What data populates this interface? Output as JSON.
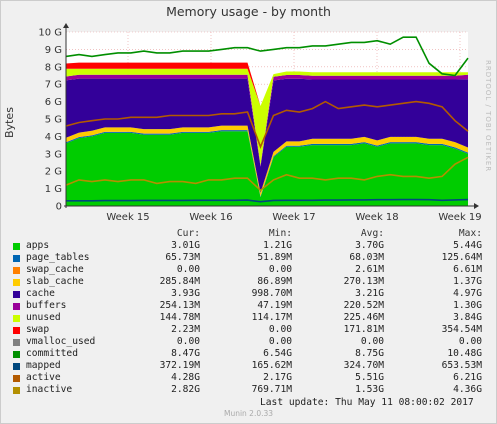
{
  "title": "Memory usage - by month",
  "ylabel": "Bytes",
  "side_text": "RRDTOOL / TOBI OETIKER",
  "columns": [
    "Cur:",
    "Min:",
    "Avg:",
    "Max:"
  ],
  "last_update": "Last update:  Thu May 11 08:00:02 2017",
  "version": "Munin 2.0.33",
  "chart_data": {
    "type": "area",
    "title": "Memory usage - by month",
    "ylabel": "Bytes",
    "xlabel": "",
    "ylim": [
      0,
      10
    ],
    "y_ticks": [
      "0",
      "1 G",
      "2 G",
      "3 G",
      "4 G",
      "5 G",
      "6 G",
      "7 G",
      "8 G",
      "9 G",
      "10 G"
    ],
    "x_ticks": [
      "Week 15",
      "Week 16",
      "Week 17",
      "Week 18",
      "Week 19"
    ],
    "grid": true,
    "stacked_series": [
      {
        "name": "apps",
        "color": "#00cc00",
        "values": [
          3.6,
          3.9,
          4.0,
          4.2,
          4.2,
          4.2,
          4.1,
          4.1,
          4.1,
          4.2,
          4.2,
          4.2,
          4.3,
          4.3,
          4.3,
          0.5,
          2.8,
          3.4,
          3.4,
          3.5,
          3.5,
          3.5,
          3.5,
          3.6,
          3.4,
          3.6,
          3.6,
          3.6,
          3.5,
          3.5,
          3.3,
          3.0
        ]
      },
      {
        "name": "page_tables",
        "color": "#0066b3",
        "values": [
          0.06,
          0.06,
          0.06,
          0.06,
          0.06,
          0.06,
          0.06,
          0.06,
          0.06,
          0.06,
          0.06,
          0.06,
          0.06,
          0.06,
          0.06,
          0.05,
          0.06,
          0.06,
          0.06,
          0.07,
          0.07,
          0.07,
          0.07,
          0.07,
          0.07,
          0.07,
          0.07,
          0.07,
          0.07,
          0.07,
          0.07,
          0.07
        ]
      },
      {
        "name": "swap_cache",
        "color": "#ff8000",
        "values": [
          0.01,
          0.01,
          0.01,
          0.01,
          0.01,
          0.01,
          0.01,
          0.01,
          0.01,
          0.01,
          0.01,
          0.01,
          0.01,
          0.01,
          0.01,
          0.0,
          0.0,
          0.0,
          0.0,
          0.0,
          0.0,
          0.0,
          0.0,
          0.0,
          0.0,
          0.0,
          0.0,
          0.0,
          0.0,
          0.0,
          0.0,
          0.0
        ]
      },
      {
        "name": "slab_cache",
        "color": "#ffcc00",
        "values": [
          0.25,
          0.25,
          0.25,
          0.25,
          0.25,
          0.25,
          0.25,
          0.25,
          0.25,
          0.25,
          0.25,
          0.25,
          0.25,
          0.25,
          0.25,
          0.2,
          0.25,
          0.25,
          0.25,
          0.3,
          0.3,
          0.3,
          0.3,
          0.3,
          0.3,
          0.3,
          0.3,
          0.3,
          0.3,
          0.3,
          0.3,
          0.29
        ]
      },
      {
        "name": "cache",
        "color": "#330099",
        "values": [
          3.3,
          3.1,
          3.0,
          2.8,
          2.8,
          2.8,
          2.9,
          2.9,
          2.9,
          2.8,
          2.8,
          2.8,
          2.7,
          2.7,
          2.7,
          1.5,
          4.1,
          3.6,
          3.6,
          3.4,
          3.4,
          3.4,
          3.4,
          3.3,
          3.5,
          3.3,
          3.3,
          3.3,
          3.4,
          3.4,
          3.6,
          3.93
        ]
      },
      {
        "name": "buffers",
        "color": "#990099",
        "values": [
          0.22,
          0.22,
          0.22,
          0.22,
          0.22,
          0.22,
          0.22,
          0.22,
          0.22,
          0.22,
          0.22,
          0.22,
          0.22,
          0.22,
          0.22,
          0.1,
          0.22,
          0.22,
          0.22,
          0.22,
          0.22,
          0.22,
          0.22,
          0.22,
          0.22,
          0.22,
          0.22,
          0.22,
          0.22,
          0.22,
          0.22,
          0.25
        ]
      },
      {
        "name": "unused",
        "color": "#ccff00",
        "values": [
          0.45,
          0.35,
          0.35,
          0.35,
          0.35,
          0.35,
          0.35,
          0.35,
          0.35,
          0.35,
          0.35,
          0.35,
          0.35,
          0.35,
          0.35,
          3.4,
          0.15,
          0.2,
          0.2,
          0.2,
          0.2,
          0.2,
          0.2,
          0.2,
          0.2,
          0.2,
          0.2,
          0.2,
          0.2,
          0.2,
          0.2,
          0.15
        ]
      },
      {
        "name": "swap",
        "color": "#ff0000",
        "values": [
          0.3,
          0.35,
          0.35,
          0.35,
          0.35,
          0.35,
          0.35,
          0.35,
          0.35,
          0.35,
          0.35,
          0.35,
          0.35,
          0.35,
          0.35,
          0.0,
          0.0,
          0.0,
          0.0,
          0.0,
          0.0,
          0.0,
          0.0,
          0.0,
          0.0,
          0.0,
          0.0,
          0.0,
          0.0,
          0.0,
          0.0,
          0.0
        ]
      }
    ],
    "line_series": [
      {
        "name": "committed",
        "color": "#008f00",
        "values": [
          8.6,
          8.7,
          8.6,
          8.7,
          8.8,
          8.8,
          8.9,
          8.8,
          8.8,
          8.9,
          8.9,
          8.9,
          9.0,
          9.1,
          9.1,
          8.9,
          9.0,
          9.1,
          9.1,
          9.2,
          9.2,
          9.3,
          9.4,
          9.4,
          9.5,
          9.3,
          9.7,
          9.7,
          8.2,
          7.6,
          7.5,
          8.5
        ]
      },
      {
        "name": "mapped",
        "color": "#00487d",
        "values": [
          0.3,
          0.3,
          0.3,
          0.31,
          0.31,
          0.31,
          0.32,
          0.32,
          0.32,
          0.32,
          0.33,
          0.33,
          0.33,
          0.33,
          0.34,
          0.25,
          0.32,
          0.33,
          0.33,
          0.33,
          0.34,
          0.34,
          0.35,
          0.35,
          0.36,
          0.36,
          0.37,
          0.37,
          0.36,
          0.33,
          0.35,
          0.37
        ]
      },
      {
        "name": "active",
        "color": "#b35a00",
        "values": [
          4.6,
          4.8,
          4.9,
          5.0,
          5.0,
          5.1,
          5.1,
          5.1,
          5.2,
          5.2,
          5.2,
          5.2,
          5.3,
          5.3,
          5.4,
          3.4,
          5.2,
          5.5,
          5.4,
          5.6,
          6.0,
          5.6,
          5.7,
          5.8,
          5.7,
          5.8,
          5.9,
          6.0,
          5.9,
          5.7,
          4.9,
          4.3
        ]
      },
      {
        "name": "inactive",
        "color": "#b38f00",
        "values": [
          1.2,
          1.5,
          1.4,
          1.5,
          1.4,
          1.5,
          1.5,
          1.3,
          1.4,
          1.4,
          1.3,
          1.5,
          1.5,
          1.6,
          1.6,
          0.9,
          1.5,
          1.8,
          1.6,
          1.6,
          1.5,
          1.6,
          1.6,
          1.5,
          1.7,
          1.8,
          1.7,
          1.7,
          1.6,
          1.7,
          2.4,
          2.8
        ]
      }
    ]
  },
  "legend": [
    {
      "name": "apps",
      "color": "#00cc00",
      "cur": "3.01G",
      "min": "1.21G",
      "avg": "3.70G",
      "max": "5.44G"
    },
    {
      "name": "page_tables",
      "color": "#0066b3",
      "cur": "65.73M",
      "min": "51.89M",
      "avg": "68.03M",
      "max": "125.64M"
    },
    {
      "name": "swap_cache",
      "color": "#ff8000",
      "cur": "0.00",
      "min": "0.00",
      "avg": "2.61M",
      "max": "6.61M"
    },
    {
      "name": "slab_cache",
      "color": "#ffcc00",
      "cur": "285.84M",
      "min": "86.89M",
      "avg": "270.13M",
      "max": "1.37G"
    },
    {
      "name": "cache",
      "color": "#330099",
      "cur": "3.93G",
      "min": "998.70M",
      "avg": "3.21G",
      "max": "4.97G"
    },
    {
      "name": "buffers",
      "color": "#990099",
      "cur": "254.13M",
      "min": "47.19M",
      "avg": "220.52M",
      "max": "1.30G"
    },
    {
      "name": "unused",
      "color": "#ccff00",
      "cur": "144.78M",
      "min": "114.17M",
      "avg": "225.46M",
      "max": "3.84G"
    },
    {
      "name": "swap",
      "color": "#ff0000",
      "cur": "2.23M",
      "min": "0.00",
      "avg": "171.81M",
      "max": "354.54M"
    },
    {
      "name": "vmalloc_used",
      "color": "#808080",
      "cur": "0.00",
      "min": "0.00",
      "avg": "0.00",
      "max": "0.00"
    },
    {
      "name": "committed",
      "color": "#008f00",
      "cur": "8.47G",
      "min": "6.54G",
      "avg": "8.75G",
      "max": "10.48G"
    },
    {
      "name": "mapped",
      "color": "#00487d",
      "cur": "372.19M",
      "min": "165.62M",
      "avg": "324.70M",
      "max": "653.53M"
    },
    {
      "name": "active",
      "color": "#b35a00",
      "cur": "4.28G",
      "min": "2.17G",
      "avg": "5.51G",
      "max": "6.21G"
    },
    {
      "name": "inactive",
      "color": "#b38f00",
      "cur": "2.82G",
      "min": "769.71M",
      "avg": "1.53G",
      "max": "4.36G"
    }
  ]
}
